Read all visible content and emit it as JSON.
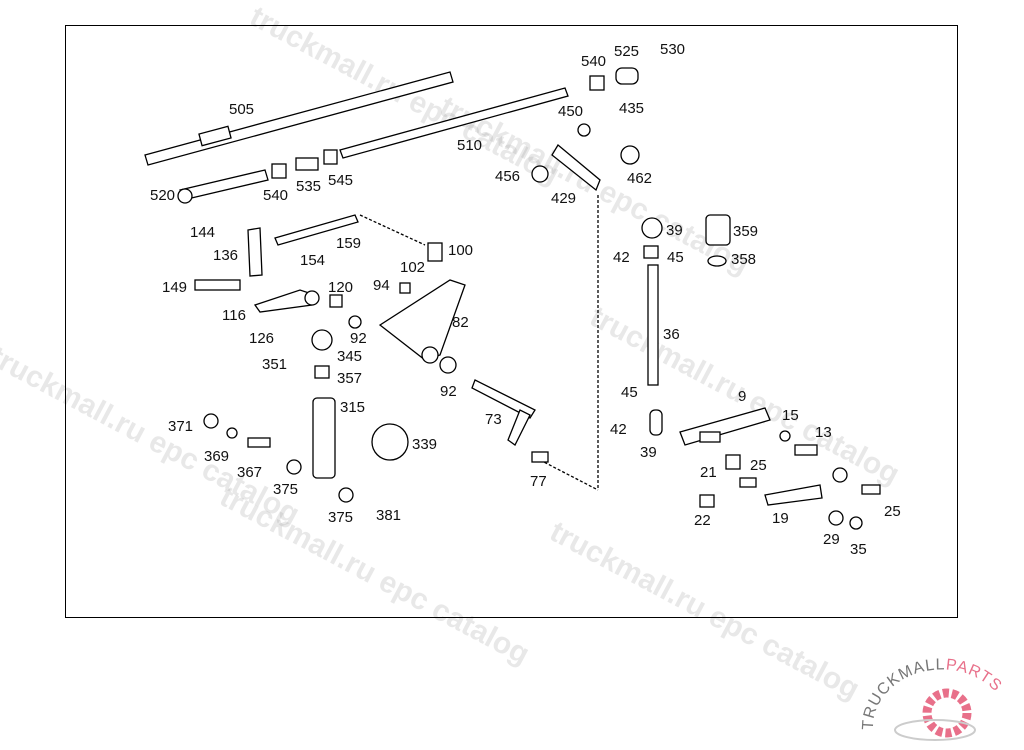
{
  "diagram": {
    "labels": [
      "505",
      "540",
      "525",
      "530",
      "450",
      "435",
      "510",
      "520",
      "540",
      "535",
      "545",
      "456",
      "462",
      "429",
      "144",
      "159",
      "100",
      "39",
      "359",
      "136",
      "154",
      "102",
      "42",
      "45",
      "358",
      "149",
      "94",
      "120",
      "82",
      "116",
      "126",
      "92",
      "36",
      "351",
      "345",
      "357",
      "92",
      "45",
      "9",
      "315",
      "371",
      "73",
      "15",
      "13",
      "42",
      "339",
      "369",
      "39",
      "21",
      "25",
      "367",
      "375",
      "77",
      "25",
      "22",
      "19",
      "375",
      "381",
      "29",
      "35"
    ]
  },
  "watermark": {
    "text": "truckmall.ru epc catalog"
  },
  "logo": {
    "text_left": "TRUCKMALL",
    "text_right": "PARTS",
    "color_main": "#777777",
    "color_accent": "#e8708a"
  }
}
